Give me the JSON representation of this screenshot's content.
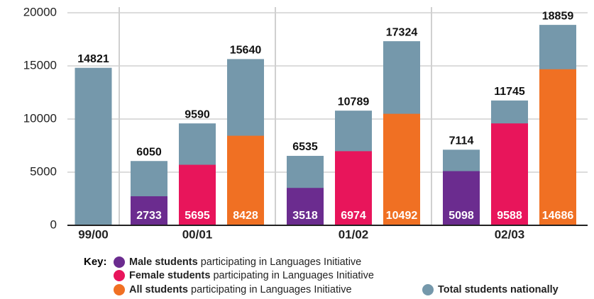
{
  "chart_data": {
    "type": "bar",
    "categories": [
      "99/00",
      "00/01",
      "01/02",
      "02/03"
    ],
    "ylim": [
      0,
      20000
    ],
    "yticks": [
      0,
      5000,
      10000,
      15000,
      20000
    ],
    "grid": true,
    "legend_title": "Key:",
    "series": [
      {
        "name": "Male students",
        "note": "participating in Languages Initiative",
        "color": "#6b2c8f",
        "values": [
          null,
          2733,
          3518,
          5098
        ],
        "totals": [
          null,
          6050,
          6535,
          7114
        ]
      },
      {
        "name": "Female students",
        "note": "participating in Languages Initiative",
        "color": "#e8155b",
        "values": [
          null,
          5695,
          6974,
          9588
        ],
        "totals": [
          null,
          9590,
          10789,
          11745
        ]
      },
      {
        "name": "All students",
        "note": "participating in Languages Initiative",
        "color": "#f07023",
        "values": [
          null,
          8428,
          10492,
          14686
        ],
        "totals": [
          null,
          15640,
          17324,
          18859
        ]
      },
      {
        "name": "Total students nationally",
        "color": "#7598ab",
        "values": [
          14821,
          null,
          null,
          null
        ]
      }
    ]
  }
}
